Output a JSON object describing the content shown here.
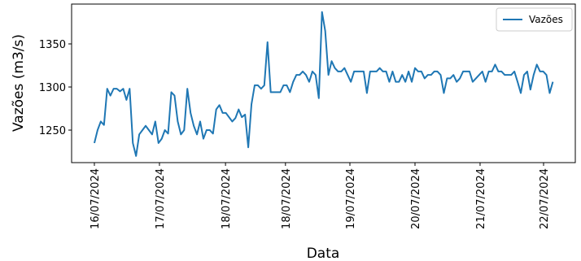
{
  "chart_data": {
    "type": "line",
    "xlabel": "Data",
    "ylabel": "Vazões (m3/s)",
    "x": [
      0,
      1,
      2,
      3,
      4,
      5,
      6,
      7,
      8,
      9,
      10,
      11,
      12,
      13,
      14,
      15,
      16,
      17,
      18,
      19,
      20,
      21,
      22,
      23,
      24,
      25,
      26,
      27,
      28,
      29,
      30,
      31,
      32,
      33,
      34,
      35,
      36,
      37,
      38,
      39,
      40,
      41,
      42,
      43,
      44,
      45,
      46,
      47,
      48,
      49,
      50,
      51,
      52,
      53,
      54,
      55,
      56,
      57,
      58,
      59,
      60,
      61,
      62,
      63,
      64,
      65,
      66,
      67,
      68,
      69,
      70,
      71,
      72,
      73,
      74,
      75,
      76,
      77,
      78,
      79,
      80,
      81,
      82,
      83,
      84,
      85,
      86,
      87,
      88,
      89,
      90,
      91,
      92,
      93,
      94,
      95,
      96,
      97,
      98,
      99,
      100,
      101,
      102,
      103,
      104,
      105,
      106,
      107,
      108,
      109,
      110,
      111,
      112,
      113,
      114,
      115,
      116,
      117,
      118,
      119,
      120,
      121,
      122,
      123,
      124,
      125,
      126,
      127,
      128,
      129,
      130,
      131,
      132,
      133,
      134,
      135,
      136,
      137,
      138,
      139,
      140,
      141,
      142,
      143
    ],
    "series": [
      {
        "name": "Vazões",
        "color": "#1f77b4",
        "values": [
          1235,
          1250,
          1260,
          1256,
          1298,
          1290,
          1298,
          1298,
          1295,
          1298,
          1285,
          1298,
          1235,
          1220,
          1245,
          1250,
          1255,
          1250,
          1245,
          1260,
          1235,
          1240,
          1250,
          1246,
          1294,
          1290,
          1260,
          1245,
          1250,
          1298,
          1270,
          1255,
          1245,
          1260,
          1240,
          1250,
          1250,
          1246,
          1274,
          1279,
          1270,
          1270,
          1265,
          1260,
          1264,
          1274,
          1265,
          1268,
          1230,
          1280,
          1302,
          1302,
          1298,
          1302,
          1352,
          1294,
          1294,
          1294,
          1294,
          1302,
          1302,
          1294,
          1306,
          1314,
          1314,
          1318,
          1314,
          1306,
          1318,
          1314,
          1287,
          1387,
          1365,
          1314,
          1330,
          1322,
          1318,
          1318,
          1322,
          1314,
          1306,
          1318,
          1318,
          1318,
          1318,
          1293,
          1318,
          1318,
          1318,
          1322,
          1318,
          1318,
          1306,
          1318,
          1306,
          1306,
          1314,
          1306,
          1318,
          1306,
          1322,
          1318,
          1318,
          1310,
          1314,
          1314,
          1318,
          1318,
          1314,
          1293,
          1310,
          1310,
          1314,
          1306,
          1310,
          1318,
          1318,
          1318,
          1306,
          1310,
          1314,
          1318,
          1306,
          1318,
          1318,
          1326,
          1318,
          1318,
          1314,
          1314,
          1314,
          1318,
          1306,
          1293,
          1314,
          1318,
          1297,
          1314,
          1326,
          1318,
          1318,
          1314,
          1293,
          1306
        ]
      }
    ],
    "xlim": [
      -7.1,
      150
    ],
    "xticks": [
      {
        "value": 0,
        "label": "16/07/2024"
      },
      {
        "value": 20.3,
        "label": "17/07/2024"
      },
      {
        "value": 40.9,
        "label": "18/07/2024"
      },
      {
        "value": 59.6,
        "label": "18/07/2024"
      },
      {
        "value": 79.7,
        "label": "19/07/2024"
      },
      {
        "value": 100,
        "label": "20/07/2024"
      },
      {
        "value": 120.3,
        "label": "21/07/2024"
      },
      {
        "value": 140.1,
        "label": "22/07/2024"
      }
    ],
    "ylim": [
      1212.3,
      1396.2
    ],
    "yticks": [
      1250,
      1300,
      1350
    ],
    "legend": "upper right",
    "grid": false
  }
}
